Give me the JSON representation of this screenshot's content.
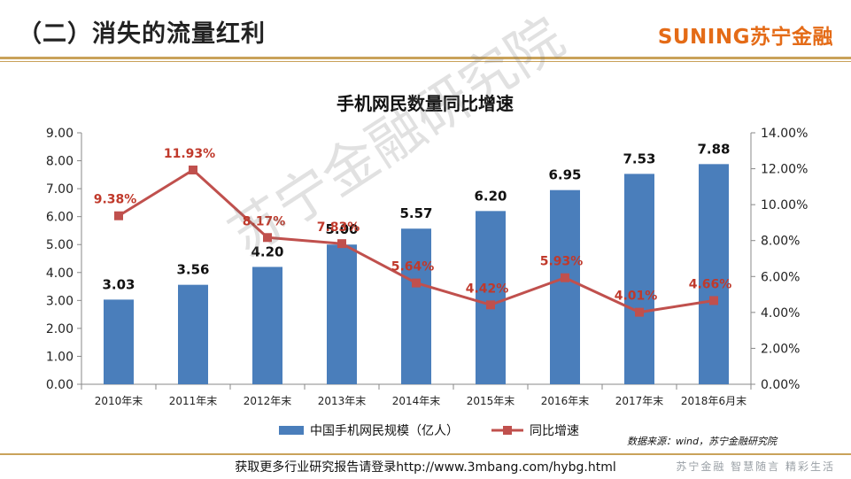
{
  "header": {
    "title": "（二）消失的流量红利",
    "brand": "SUNING苏宁金融"
  },
  "footer": {
    "note": "获取更多行业研究报告请登录http://www.3mbang.com/hybg.html",
    "slogan": "苏宁金融 智慧随言 精彩生活"
  },
  "source": "数据来源：wind，苏宁金融研究院",
  "watermark": "苏宁金融研究院",
  "colors": {
    "bar": "#4a7ebb",
    "line": "#c0504d",
    "accent": "#c9a25a",
    "brand": "#e46b17"
  },
  "chart_data": {
    "type": "bar+line",
    "title": "手机网民数量同比增速",
    "categories": [
      "2010年末",
      "2011年末",
      "2012年末",
      "2013年末",
      "2014年末",
      "2015年末",
      "2016年末",
      "2017年末",
      "2018年6月末"
    ],
    "series": [
      {
        "name": "中国手机网民规模（亿人）",
        "type": "bar",
        "axis": "left",
        "values": [
          3.03,
          3.56,
          4.2,
          5.0,
          5.57,
          6.2,
          6.95,
          7.53,
          7.88
        ],
        "labels": [
          "3.03",
          "3.56",
          "4.20",
          "5.00",
          "5.57",
          "6.20",
          "6.95",
          "7.53",
          "7.88"
        ]
      },
      {
        "name": "同比增速",
        "type": "line",
        "axis": "right",
        "values": [
          9.38,
          11.93,
          8.17,
          7.83,
          5.64,
          4.42,
          5.93,
          4.01,
          4.66
        ],
        "labels": [
          "9.38%",
          "11.93%",
          "8.17%",
          "7.83%",
          "5.64%",
          "4.42%",
          "5.93%",
          "4.01%",
          "4.66%"
        ]
      }
    ],
    "y_left": {
      "min": 0,
      "max": 9,
      "ticks": [
        "0.00",
        "1.00",
        "2.00",
        "3.00",
        "4.00",
        "5.00",
        "6.00",
        "7.00",
        "8.00",
        "9.00"
      ]
    },
    "y_right": {
      "min": 0,
      "max": 14,
      "ticks": [
        "0.00%",
        "2.00%",
        "4.00%",
        "6.00%",
        "8.00%",
        "10.00%",
        "12.00%",
        "14.00%"
      ]
    },
    "grid": false,
    "legend": "bottom"
  }
}
